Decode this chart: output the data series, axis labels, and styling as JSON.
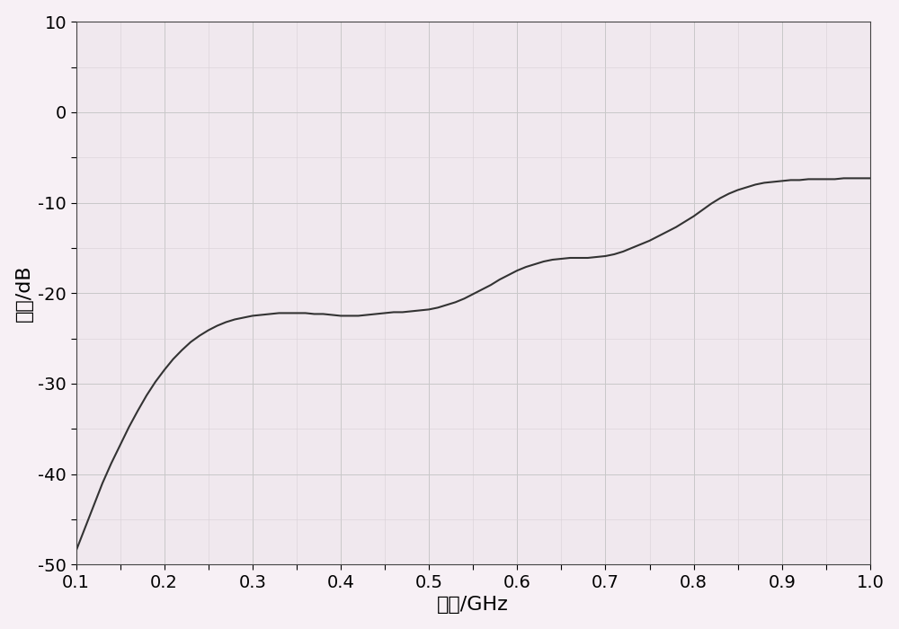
{
  "title": "",
  "xlabel": "频率/GHz",
  "ylabel": "增益/dB",
  "xlim": [
    0.1,
    1.0
  ],
  "ylim": [
    -50,
    10
  ],
  "xticks": [
    0.1,
    0.2,
    0.3,
    0.4,
    0.5,
    0.6,
    0.7,
    0.8,
    0.9,
    1.0
  ],
  "yticks": [
    -50,
    -40,
    -30,
    -20,
    -10,
    0,
    10
  ],
  "background_color": "#f7f0f5",
  "plot_bg_color": "#f0e8ee",
  "grid_color_major": "#c8c8c8",
  "grid_color_minor": "#d8d0d6",
  "line_color": "#333333",
  "line_width": 1.5,
  "x": [
    0.1,
    0.11,
    0.12,
    0.13,
    0.14,
    0.15,
    0.16,
    0.17,
    0.18,
    0.19,
    0.2,
    0.21,
    0.22,
    0.23,
    0.24,
    0.25,
    0.26,
    0.27,
    0.28,
    0.29,
    0.3,
    0.31,
    0.32,
    0.33,
    0.34,
    0.35,
    0.36,
    0.37,
    0.38,
    0.39,
    0.4,
    0.41,
    0.42,
    0.43,
    0.44,
    0.45,
    0.46,
    0.47,
    0.48,
    0.49,
    0.5,
    0.51,
    0.52,
    0.53,
    0.54,
    0.55,
    0.56,
    0.57,
    0.58,
    0.59,
    0.6,
    0.61,
    0.62,
    0.63,
    0.64,
    0.65,
    0.66,
    0.67,
    0.68,
    0.69,
    0.7,
    0.71,
    0.72,
    0.73,
    0.74,
    0.75,
    0.76,
    0.77,
    0.78,
    0.79,
    0.8,
    0.81,
    0.82,
    0.83,
    0.84,
    0.85,
    0.86,
    0.87,
    0.88,
    0.89,
    0.9,
    0.91,
    0.92,
    0.93,
    0.94,
    0.95,
    0.96,
    0.97,
    0.98,
    0.99,
    1.0
  ],
  "y": [
    -48.5,
    -46.0,
    -43.5,
    -41.0,
    -38.8,
    -36.8,
    -34.8,
    -33.0,
    -31.3,
    -29.8,
    -28.5,
    -27.3,
    -26.3,
    -25.4,
    -24.7,
    -24.1,
    -23.6,
    -23.2,
    -22.9,
    -22.7,
    -22.5,
    -22.4,
    -22.3,
    -22.2,
    -22.2,
    -22.2,
    -22.2,
    -22.3,
    -22.3,
    -22.4,
    -22.5,
    -22.5,
    -22.5,
    -22.4,
    -22.3,
    -22.2,
    -22.1,
    -22.1,
    -22.0,
    -21.9,
    -21.8,
    -21.6,
    -21.3,
    -21.0,
    -20.6,
    -20.1,
    -19.6,
    -19.1,
    -18.5,
    -18.0,
    -17.5,
    -17.1,
    -16.8,
    -16.5,
    -16.3,
    -16.2,
    -16.1,
    -16.1,
    -16.1,
    -16.0,
    -15.9,
    -15.7,
    -15.4,
    -15.0,
    -14.6,
    -14.2,
    -13.7,
    -13.2,
    -12.7,
    -12.1,
    -11.5,
    -10.8,
    -10.1,
    -9.5,
    -9.0,
    -8.6,
    -8.3,
    -8.0,
    -7.8,
    -7.7,
    -7.6,
    -7.5,
    -7.5,
    -7.4,
    -7.4,
    -7.4,
    -7.4,
    -7.3,
    -7.3,
    -7.3,
    -7.3
  ]
}
